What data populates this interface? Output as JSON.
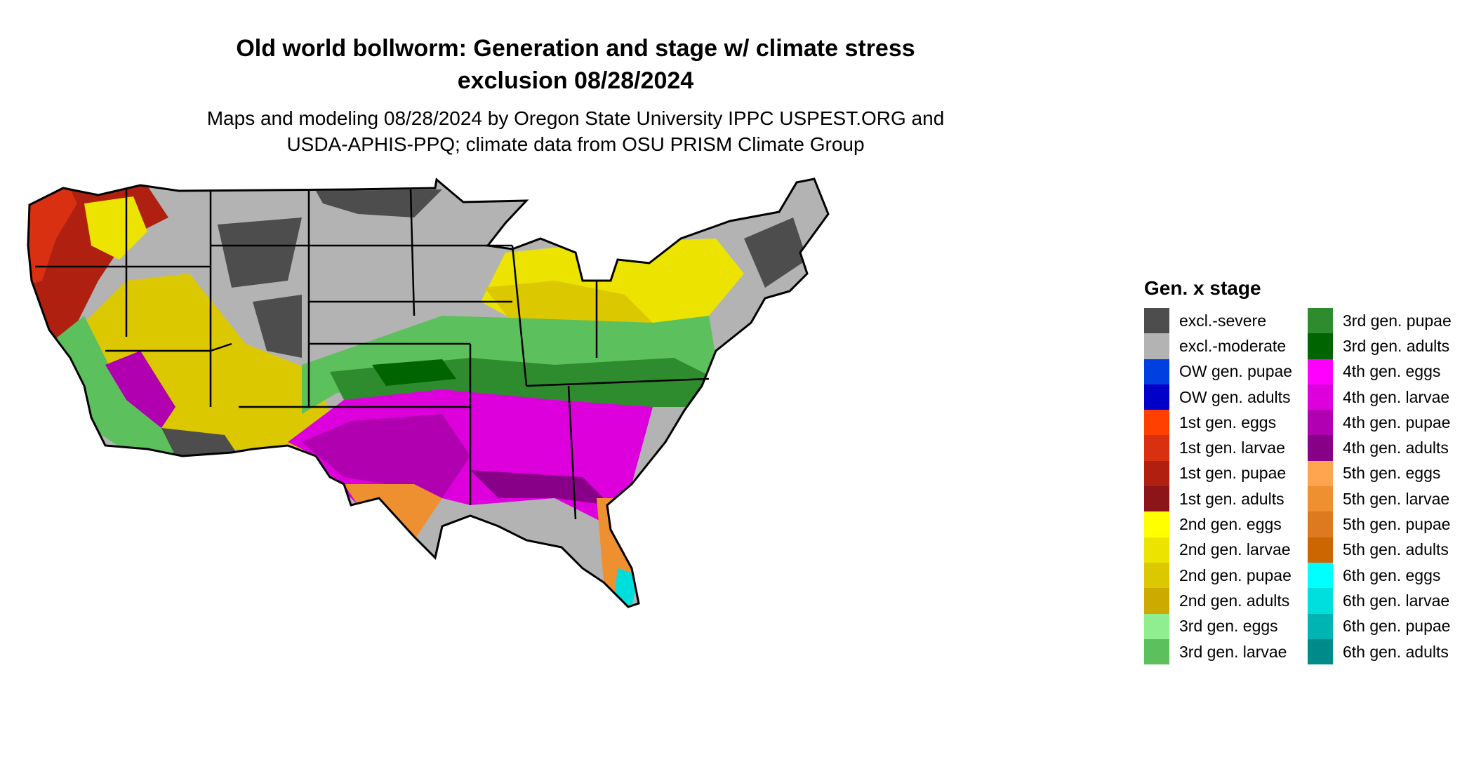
{
  "title_line1": "Old world bollworm: Generation and stage w/ climate stress",
  "title_line2": "exclusion 08/28/2024",
  "subtitle_line1": "Maps and modeling 08/28/2024 by Oregon State University IPPC USPEST.ORG and",
  "subtitle_line2": "USDA-APHIS-PPQ; climate data from OSU PRISM Climate Group",
  "legend": {
    "title": "Gen. x stage",
    "items": [
      {
        "label": "excl.-severe",
        "color": "#4d4d4d"
      },
      {
        "label": "excl.-moderate",
        "color": "#b3b3b3"
      },
      {
        "label": "OW gen. pupae",
        "color": "#0040e0"
      },
      {
        "label": "OW gen. adults",
        "color": "#0000c8"
      },
      {
        "label": "1st gen. eggs",
        "color": "#ff4000"
      },
      {
        "label": "1st gen. larvae",
        "color": "#d83010"
      },
      {
        "label": "1st gen. pupae",
        "color": "#b02010"
      },
      {
        "label": "1st gen. adults",
        "color": "#8b1518"
      },
      {
        "label": "2nd gen. eggs",
        "color": "#ffff00"
      },
      {
        "label": "2nd gen. larvae",
        "color": "#ece400"
      },
      {
        "label": "2nd gen. pupae",
        "color": "#dcc800"
      },
      {
        "label": "2nd gen. adults",
        "color": "#ccaa00"
      },
      {
        "label": "3rd gen. eggs",
        "color": "#90ee90"
      },
      {
        "label": "3rd gen. larvae",
        "color": "#5cc05c"
      },
      {
        "label": "3rd gen. pupae",
        "color": "#2e8b2e"
      },
      {
        "label": "3rd gen. adults",
        "color": "#006400"
      },
      {
        "label": "4th gen. eggs",
        "color": "#ff00ff"
      },
      {
        "label": "4th gen. larvae",
        "color": "#dd00dd"
      },
      {
        "label": "4th gen. pupae",
        "color": "#b000b0"
      },
      {
        "label": "4th gen. adults",
        "color": "#880088"
      },
      {
        "label": "5th gen. eggs",
        "color": "#ffa550"
      },
      {
        "label": "5th gen. larvae",
        "color": "#ee9030"
      },
      {
        "label": "5th gen. pupae",
        "color": "#dd7a20"
      },
      {
        "label": "5th gen. adults",
        "color": "#cc6600"
      },
      {
        "label": "6th gen. eggs",
        "color": "#00ffff"
      },
      {
        "label": "6th gen. larvae",
        "color": "#00dddd"
      },
      {
        "label": "6th gen. pupae",
        "color": "#00b4b4"
      },
      {
        "label": "6th gen. adults",
        "color": "#008b8b"
      }
    ]
  }
}
